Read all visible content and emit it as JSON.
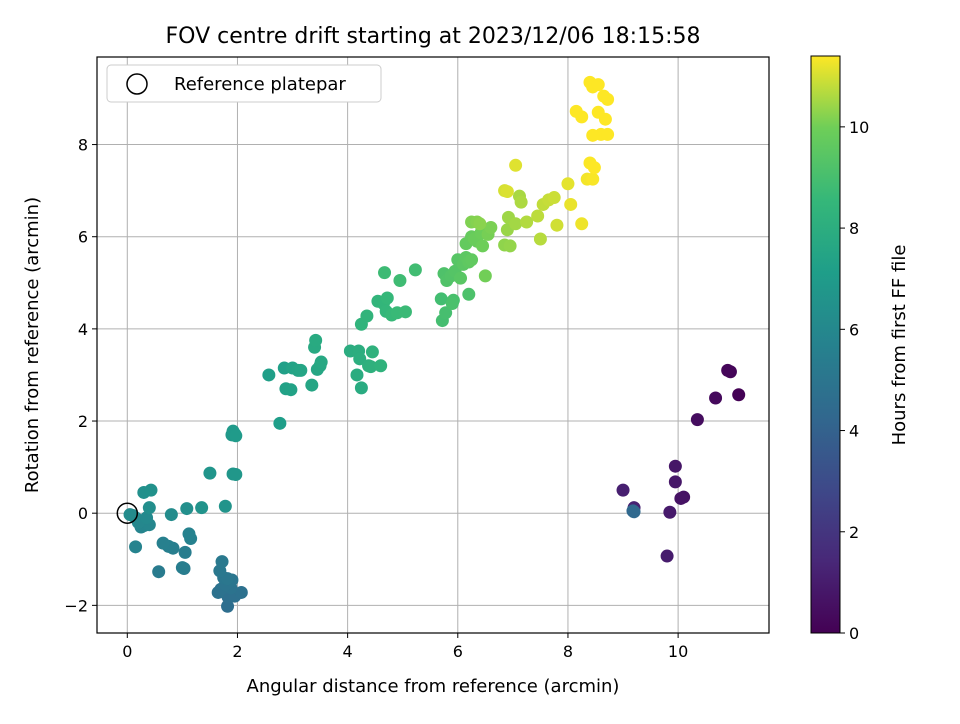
{
  "chart_data": {
    "type": "scatter",
    "title": "FOV centre drift starting at 2023/12/06 18:15:58",
    "xlabel": "Angular distance from reference (arcmin)",
    "ylabel": "Rotation from reference (arcmin)",
    "xlim": [
      -0.55,
      11.65
    ],
    "ylim": [
      -2.6,
      9.9
    ],
    "xticks": [
      0,
      2,
      4,
      6,
      8,
      10
    ],
    "yticks": [
      -2,
      0,
      2,
      4,
      6,
      8
    ],
    "xtick_labels": [
      "0",
      "2",
      "4",
      "6",
      "8",
      "10"
    ],
    "ytick_labels": [
      "−2",
      "0",
      "2",
      "4",
      "6",
      "8"
    ],
    "grid": true,
    "legend": {
      "placement": "top-left",
      "entries": [
        "Reference platepar"
      ]
    },
    "reference_point": {
      "x": 0,
      "y": 0,
      "label": "Reference platepar"
    },
    "colorbar": {
      "label": "Hours from first FF file",
      "range": [
        0,
        11.4
      ],
      "ticks": [
        0,
        2,
        4,
        6,
        8,
        10
      ],
      "tick_labels": [
        "0",
        "2",
        "4",
        "6",
        "8",
        "10"
      ],
      "colormap": "viridis"
    },
    "points": [
      [
        11.1,
        2.57,
        0.05
      ],
      [
        10.95,
        3.07,
        0.15
      ],
      [
        10.9,
        3.1,
        0.2
      ],
      [
        10.68,
        2.5,
        0.3
      ],
      [
        10.35,
        2.03,
        0.45
      ],
      [
        10.1,
        0.35,
        0.6
      ],
      [
        10.05,
        0.32,
        0.65
      ],
      [
        9.95,
        1.02,
        0.75
      ],
      [
        9.95,
        0.68,
        0.8
      ],
      [
        9.85,
        0.02,
        0.9
      ],
      [
        9.8,
        -0.93,
        1.0
      ],
      [
        9.0,
        0.5,
        1.1
      ],
      [
        9.2,
        0.12,
        1.2
      ],
      [
        9.18,
        0.05,
        4.3
      ],
      [
        9.2,
        0.03,
        4.35
      ],
      [
        1.82,
        -2.02,
        4.6
      ],
      [
        1.83,
        -1.82,
        4.65
      ],
      [
        1.95,
        -1.8,
        4.7
      ],
      [
        2.07,
        -1.72,
        4.75
      ],
      [
        1.65,
        -1.72,
        4.8
      ],
      [
        1.7,
        -1.65,
        4.85
      ],
      [
        1.88,
        -1.62,
        4.9
      ],
      [
        1.78,
        -1.55,
        4.95
      ],
      [
        1.9,
        -1.45,
        5.0
      ],
      [
        1.75,
        -1.4,
        5.05
      ],
      [
        1.82,
        -1.42,
        5.1
      ],
      [
        1.68,
        -1.25,
        5.15
      ],
      [
        1.72,
        -1.05,
        5.2
      ],
      [
        0.57,
        -1.27,
        5.3
      ],
      [
        1.03,
        -1.2,
        5.35
      ],
      [
        1.0,
        -1.18,
        5.4
      ],
      [
        1.05,
        -0.85,
        5.45
      ],
      [
        0.83,
        -0.76,
        5.5
      ],
      [
        0.75,
        -0.72,
        5.55
      ],
      [
        0.65,
        -0.65,
        5.6
      ],
      [
        1.15,
        -0.55,
        5.65
      ],
      [
        1.12,
        -0.45,
        5.7
      ],
      [
        0.15,
        -0.73,
        5.75
      ],
      [
        0.25,
        -0.3,
        5.8
      ],
      [
        0.3,
        -0.27,
        5.85
      ],
      [
        0.4,
        -0.25,
        5.9
      ],
      [
        0.2,
        -0.2,
        5.95
      ],
      [
        0.15,
        -0.1,
        6.0
      ],
      [
        0.35,
        -0.1,
        6.05
      ],
      [
        0.1,
        -0.05,
        6.1
      ],
      [
        0.05,
        -0.03,
        6.15
      ],
      [
        0.8,
        -0.03,
        6.2
      ],
      [
        0.4,
        0.12,
        6.3
      ],
      [
        1.08,
        0.1,
        6.35
      ],
      [
        0.3,
        0.45,
        6.4
      ],
      [
        0.43,
        0.5,
        6.45
      ],
      [
        1.35,
        0.12,
        6.55
      ],
      [
        1.78,
        0.15,
        6.6
      ],
      [
        1.5,
        0.87,
        6.65
      ],
      [
        1.92,
        0.85,
        6.7
      ],
      [
        1.97,
        0.84,
        6.75
      ],
      [
        1.9,
        1.7,
        6.8
      ],
      [
        1.95,
        1.72,
        6.85
      ],
      [
        1.92,
        1.78,
        6.9
      ],
      [
        1.97,
        1.68,
        6.95
      ],
      [
        2.77,
        1.95,
        7.1
      ],
      [
        2.57,
        3.0,
        7.2
      ],
      [
        2.85,
        3.15,
        7.25
      ],
      [
        2.88,
        2.7,
        7.3
      ],
      [
        2.97,
        2.68,
        7.35
      ],
      [
        3.0,
        3.15,
        7.4
      ],
      [
        3.1,
        3.1,
        7.45
      ],
      [
        3.15,
        3.1,
        7.5
      ],
      [
        3.35,
        2.78,
        7.55
      ],
      [
        3.45,
        3.12,
        7.6
      ],
      [
        3.5,
        3.2,
        7.65
      ],
      [
        3.52,
        3.28,
        7.7
      ],
      [
        3.4,
        3.6,
        7.75
      ],
      [
        3.42,
        3.75,
        7.8
      ],
      [
        4.25,
        2.72,
        7.85
      ],
      [
        4.17,
        3.0,
        7.9
      ],
      [
        4.05,
        3.52,
        7.95
      ],
      [
        4.2,
        3.52,
        8.0
      ],
      [
        4.22,
        3.35,
        8.05
      ],
      [
        4.38,
        3.2,
        8.1
      ],
      [
        4.42,
        3.18,
        8.15
      ],
      [
        4.45,
        3.5,
        8.2
      ],
      [
        4.6,
        3.2,
        8.25
      ],
      [
        4.25,
        4.1,
        8.3
      ],
      [
        4.35,
        4.28,
        8.35
      ],
      [
        4.55,
        4.6,
        8.4
      ],
      [
        4.65,
        4.55,
        8.45
      ],
      [
        4.7,
        4.38,
        8.5
      ],
      [
        4.72,
        4.67,
        8.55
      ],
      [
        4.8,
        4.3,
        8.6
      ],
      [
        4.9,
        4.35,
        8.65
      ],
      [
        5.05,
        4.37,
        8.7
      ],
      [
        4.67,
        5.22,
        8.75
      ],
      [
        4.95,
        5.05,
        8.8
      ],
      [
        5.23,
        5.28,
        8.85
      ],
      [
        5.7,
        4.65,
        8.9
      ],
      [
        5.72,
        4.18,
        8.95
      ],
      [
        5.78,
        4.35,
        9.0
      ],
      [
        5.92,
        4.62,
        9.05
      ],
      [
        5.9,
        4.55,
        9.1
      ],
      [
        6.2,
        4.75,
        9.15
      ],
      [
        5.75,
        5.2,
        9.2
      ],
      [
        5.8,
        5.05,
        9.25
      ],
      [
        5.88,
        5.15,
        9.3
      ],
      [
        5.95,
        5.25,
        9.35
      ],
      [
        6.0,
        5.5,
        9.4
      ],
      [
        6.05,
        5.1,
        9.45
      ],
      [
        6.1,
        5.4,
        9.5
      ],
      [
        6.15,
        5.55,
        9.55
      ],
      [
        6.2,
        5.45,
        9.6
      ],
      [
        6.25,
        5.5,
        9.65
      ],
      [
        6.15,
        5.85,
        9.7
      ],
      [
        6.25,
        6.0,
        9.75
      ],
      [
        6.35,
        5.9,
        9.8
      ],
      [
        6.3,
        5.95,
        9.85
      ],
      [
        6.42,
        6.08,
        9.9
      ],
      [
        6.45,
        5.8,
        9.95
      ],
      [
        6.5,
        5.15,
        10.0
      ],
      [
        6.55,
        6.05,
        10.05
      ],
      [
        6.6,
        6.2,
        10.1
      ],
      [
        6.25,
        6.32,
        10.15
      ],
      [
        6.35,
        6.32,
        10.2
      ],
      [
        6.4,
        6.28,
        10.25
      ],
      [
        6.85,
        5.82,
        10.3
      ],
      [
        6.95,
        5.8,
        10.35
      ],
      [
        6.9,
        6.15,
        10.4
      ],
      [
        6.92,
        6.42,
        10.45
      ],
      [
        7.05,
        6.28,
        10.5
      ],
      [
        7.12,
        6.88,
        10.55
      ],
      [
        7.15,
        6.75,
        10.6
      ],
      [
        7.25,
        6.32,
        10.65
      ],
      [
        7.5,
        5.95,
        10.7
      ],
      [
        7.45,
        6.45,
        10.75
      ],
      [
        7.55,
        6.7,
        10.8
      ],
      [
        7.65,
        6.8,
        10.85
      ],
      [
        7.75,
        6.85,
        10.9
      ],
      [
        7.8,
        6.25,
        10.95
      ],
      [
        6.85,
        7.0,
        11.0
      ],
      [
        6.9,
        6.98,
        11.05
      ],
      [
        7.05,
        7.55,
        11.1
      ],
      [
        8.0,
        7.15,
        11.15
      ],
      [
        8.05,
        6.7,
        11.2
      ],
      [
        8.25,
        6.28,
        11.25
      ],
      [
        8.35,
        7.25,
        11.3
      ],
      [
        8.45,
        7.25,
        11.35
      ],
      [
        8.4,
        7.6,
        11.38
      ],
      [
        8.48,
        7.5,
        11.4
      ],
      [
        8.6,
        8.22,
        11.4
      ],
      [
        8.45,
        8.2,
        11.4
      ],
      [
        8.72,
        8.22,
        11.4
      ],
      [
        8.68,
        8.55,
        11.4
      ],
      [
        8.25,
        8.6,
        11.4
      ],
      [
        8.15,
        8.72,
        11.4
      ],
      [
        8.55,
        8.7,
        11.4
      ],
      [
        8.65,
        9.05,
        11.4
      ],
      [
        8.72,
        8.98,
        11.4
      ],
      [
        8.45,
        9.25,
        11.4
      ],
      [
        8.4,
        9.35,
        11.4
      ],
      [
        8.55,
        9.3,
        11.4
      ]
    ]
  }
}
